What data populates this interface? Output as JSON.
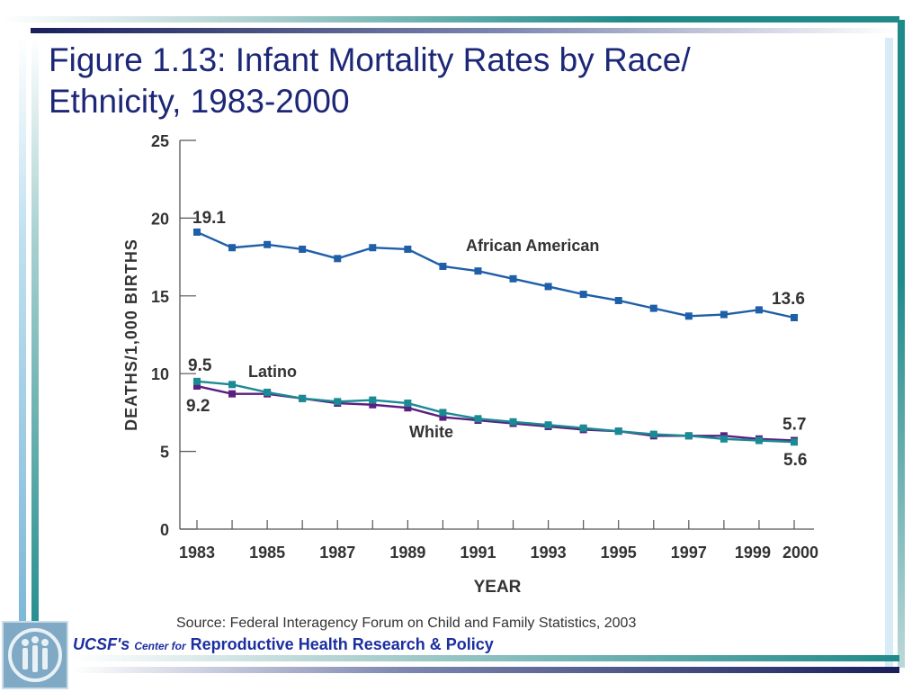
{
  "slide": {
    "title_line1": "Figure 1.13: Infant Mortality Rates by Race/",
    "title_line2": "Ethnicity, 1983-2000",
    "source": "Source: Federal Interagency Forum on Child and Family Statistics, 2003",
    "footer_ucsf": "UCSF's",
    "footer_center_for": "Center for",
    "footer_org": "Reproductive Health Research & Policy",
    "logo_icon": "people-icon",
    "colors": {
      "title": "#1c2777",
      "african_american": "#1f5fa8",
      "latino": "#1a8a94",
      "white": "#5a1f80",
      "teal_accent": "#1f8a8a",
      "navy_accent": "#1a1f5c"
    }
  },
  "chart_data": {
    "type": "line",
    "title": "",
    "xlabel": "YEAR",
    "ylabel": "DEATHS/1,000 BIRTHS",
    "ylim": [
      0,
      25
    ],
    "xlim": [
      1983,
      2000
    ],
    "yticks": [
      "0",
      "5",
      "10",
      "15",
      "20",
      "25"
    ],
    "xtick_labels": [
      "1983",
      "1985",
      "1987",
      "1989",
      "1991",
      "1993",
      "1995",
      "1997",
      "1999",
      "2000"
    ],
    "grid": false,
    "legend": "inline labels",
    "x": [
      1983,
      1984,
      1985,
      1986,
      1987,
      1988,
      1989,
      1990,
      1991,
      1992,
      1993,
      1994,
      1995,
      1996,
      1997,
      1998,
      1999,
      2000
    ],
    "series": [
      {
        "name": "African American",
        "color": "#1f5fa8",
        "values": [
          19.1,
          18.1,
          18.3,
          18.0,
          17.4,
          18.1,
          18.0,
          16.9,
          16.6,
          16.1,
          15.6,
          15.1,
          14.7,
          14.2,
          13.7,
          13.8,
          14.1,
          13.6
        ]
      },
      {
        "name": "Latino",
        "color": "#1a8a94",
        "values": [
          9.5,
          9.3,
          8.8,
          8.4,
          8.2,
          8.3,
          8.1,
          7.5,
          7.1,
          6.9,
          6.7,
          6.5,
          6.3,
          6.1,
          6.0,
          5.8,
          5.7,
          5.6
        ]
      },
      {
        "name": "White",
        "color": "#5a1f80",
        "values": [
          9.2,
          8.7,
          8.7,
          8.4,
          8.1,
          8.0,
          7.8,
          7.2,
          7.0,
          6.8,
          6.6,
          6.4,
          6.3,
          6.0,
          6.0,
          6.0,
          5.8,
          5.7
        ]
      }
    ],
    "annotations": [
      {
        "text": "19.1",
        "series": "African American",
        "x": 1983
      },
      {
        "text": "13.6",
        "series": "African American",
        "x": 2000
      },
      {
        "text": "9.5",
        "series": "Latino",
        "x": 1983
      },
      {
        "text": "9.2",
        "series": "White",
        "x": 1983
      },
      {
        "text": "5.7",
        "series": "White",
        "x": 2000
      },
      {
        "text": "5.6",
        "series": "Latino",
        "x": 2000
      }
    ],
    "series_labels": [
      "African American",
      "Latino",
      "White"
    ]
  }
}
